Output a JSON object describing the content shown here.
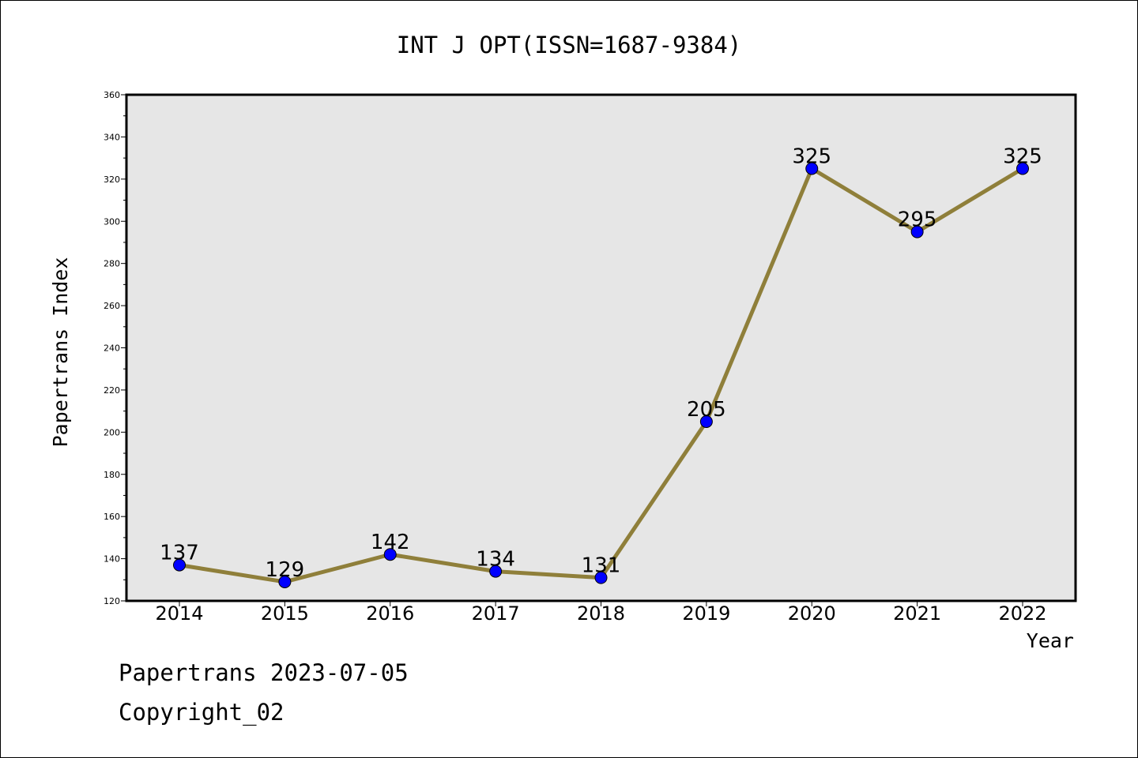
{
  "chart_data": {
    "type": "line",
    "title": "INT J OPT(ISSN=1687-9384)",
    "xlabel": "Year",
    "ylabel": "Papertrans Index",
    "categories": [
      "2014",
      "2015",
      "2016",
      "2017",
      "2018",
      "2019",
      "2020",
      "2021",
      "2022"
    ],
    "series": [
      {
        "values": [
          137,
          129,
          142,
          134,
          131,
          205,
          325,
          295,
          325
        ]
      }
    ],
    "y_ticks": [
      120,
      140,
      160,
      180,
      200,
      220,
      240,
      260,
      280,
      300,
      320,
      340,
      360
    ],
    "ylim": [
      120,
      360
    ],
    "grid": false,
    "colors": {
      "line": "#8f7f3a",
      "marker": "#0000ff",
      "plot_background": "#e6e6e6"
    }
  },
  "footer": {
    "line1": "Papertrans 2023-07-05",
    "line2": "Copyright_02"
  }
}
